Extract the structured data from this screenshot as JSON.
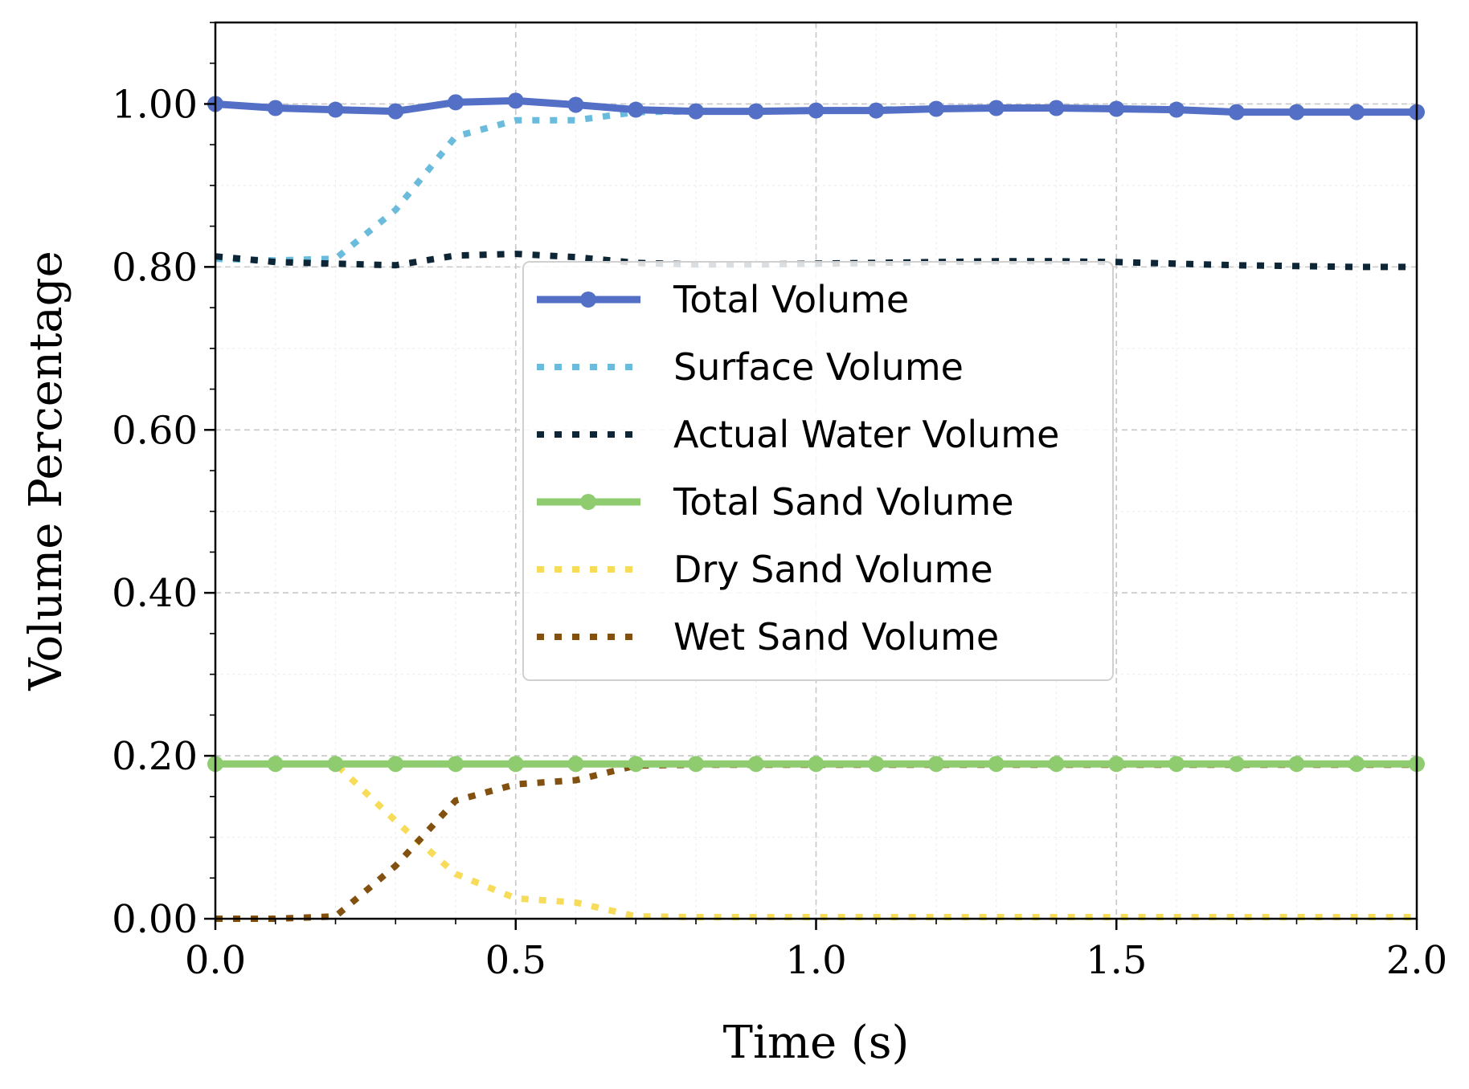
{
  "chart_data": {
    "type": "line",
    "title": "",
    "xlabel": "Time (s)",
    "ylabel": "Volume Percentage",
    "xlim": [
      0.0,
      2.0
    ],
    "ylim": [
      0.0,
      1.1
    ],
    "grid": true,
    "legend_position": "center",
    "x_ticks": [
      {
        "value": 0.0,
        "label": "0.0"
      },
      {
        "value": 0.5,
        "label": "0.5"
      },
      {
        "value": 1.0,
        "label": "1.0"
      },
      {
        "value": 1.5,
        "label": "1.5"
      },
      {
        "value": 2.0,
        "label": "2.0"
      }
    ],
    "y_ticks": [
      {
        "value": 0.0,
        "label": "0.00"
      },
      {
        "value": 0.2,
        "label": "0.20"
      },
      {
        "value": 0.4,
        "label": "0.40"
      },
      {
        "value": 0.6,
        "label": "0.60"
      },
      {
        "value": 0.8,
        "label": "0.80"
      },
      {
        "value": 1.0,
        "label": "1.00"
      }
    ],
    "x": [
      0.0,
      0.1,
      0.2,
      0.3,
      0.4,
      0.5,
      0.6,
      0.7,
      0.8,
      0.9,
      1.0,
      1.1,
      1.2,
      1.3,
      1.4,
      1.5,
      1.6,
      1.7,
      1.8,
      1.9,
      2.0
    ],
    "series": [
      {
        "name": "Surface Volume",
        "color": "#6bbcdc",
        "style": "dotted",
        "markers": false,
        "values": [
          0.81,
          0.808,
          0.81,
          0.87,
          0.96,
          0.98,
          0.98,
          0.99,
          0.991,
          0.991,
          0.992,
          0.993,
          0.994,
          0.995,
          0.995,
          0.994,
          0.993,
          0.99,
          0.99,
          0.99,
          0.99
        ]
      },
      {
        "name": "Actual Water Volume",
        "color": "#0d2535",
        "style": "dotted",
        "markers": false,
        "values": [
          0.813,
          0.806,
          0.804,
          0.802,
          0.814,
          0.816,
          0.812,
          0.805,
          0.803,
          0.803,
          0.804,
          0.805,
          0.806,
          0.807,
          0.807,
          0.806,
          0.804,
          0.802,
          0.801,
          0.8,
          0.8
        ]
      },
      {
        "name": "Dry Sand Volume",
        "color": "#f7dc5a",
        "style": "dotted",
        "markers": false,
        "values": [
          0.19,
          0.19,
          0.19,
          0.12,
          0.055,
          0.025,
          0.02,
          0.003,
          0.002,
          0.002,
          0.002,
          0.002,
          0.002,
          0.002,
          0.002,
          0.002,
          0.002,
          0.002,
          0.002,
          0.002,
          0.002
        ]
      },
      {
        "name": "Wet Sand Volume",
        "color": "#82500f",
        "style": "dotted",
        "markers": false,
        "values": [
          0.0,
          0.0,
          0.003,
          0.065,
          0.145,
          0.165,
          0.17,
          0.188,
          0.189,
          0.189,
          0.189,
          0.189,
          0.189,
          0.189,
          0.189,
          0.189,
          0.189,
          0.189,
          0.189,
          0.189,
          0.189
        ]
      },
      {
        "name": "Total Sand Volume",
        "color": "#8fcc70",
        "style": "solid",
        "markers": true,
        "values": [
          0.19,
          0.19,
          0.19,
          0.19,
          0.19,
          0.19,
          0.19,
          0.19,
          0.19,
          0.19,
          0.19,
          0.19,
          0.19,
          0.19,
          0.19,
          0.19,
          0.19,
          0.19,
          0.19,
          0.19,
          0.19
        ]
      },
      {
        "name": "Total Volume",
        "color": "#5470c6",
        "style": "solid",
        "markers": true,
        "values": [
          1.0,
          0.995,
          0.993,
          0.991,
          1.002,
          1.004,
          0.999,
          0.993,
          0.991,
          0.991,
          0.992,
          0.992,
          0.994,
          0.995,
          0.995,
          0.994,
          0.993,
          0.99,
          0.99,
          0.99,
          0.99
        ]
      }
    ],
    "legend": [
      {
        "label": "Total Volume",
        "color": "#5470c6",
        "style": "solid",
        "markers": true
      },
      {
        "label": "Surface Volume",
        "color": "#6bbcdc",
        "style": "dotted",
        "markers": false
      },
      {
        "label": "Actual Water Volume",
        "color": "#0d2535",
        "style": "dotted",
        "markers": false
      },
      {
        "label": "Total Sand Volume",
        "color": "#8fcc70",
        "style": "solid",
        "markers": true
      },
      {
        "label": "Dry Sand Volume",
        "color": "#f7dc5a",
        "style": "dotted",
        "markers": false
      },
      {
        "label": "Wet Sand Volume",
        "color": "#82500f",
        "style": "dotted",
        "markers": false
      }
    ]
  }
}
